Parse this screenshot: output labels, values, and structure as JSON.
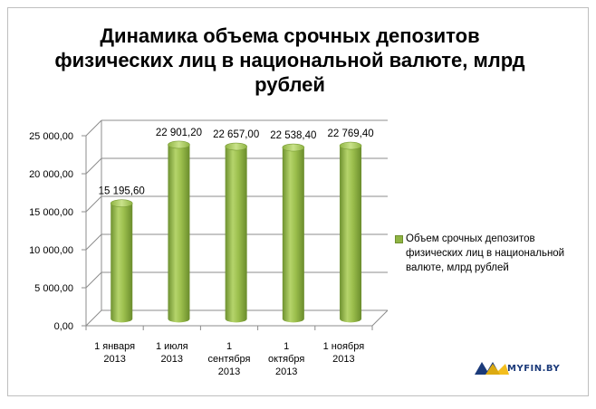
{
  "chart_data": {
    "type": "bar",
    "title_lines": [
      "Динамика объема срочных депозитов",
      "физических лиц в национальной валюте, млрд",
      "рублей"
    ],
    "categories": [
      [
        "1 января",
        "2013"
      ],
      [
        "1 июля",
        "2013"
      ],
      [
        "1",
        "сентября",
        "2013"
      ],
      [
        "1",
        "октября",
        "2013"
      ],
      [
        "1 ноября",
        "2013"
      ]
    ],
    "series": [
      {
        "name": "Объем срочных депозитов физических лиц в национальной валюте, млрд рублей",
        "legend_lines": [
          "Объем срочных депозитов",
          "физических лиц в национальной",
          "валюте, млрд рублей"
        ],
        "values": [
          15195.6,
          22901.2,
          22657.0,
          22538.4,
          22769.4
        ],
        "data_labels": [
          "15 195,60",
          "22 901,20",
          "22 657,00",
          "22 538,40",
          "22 769,40"
        ],
        "color": "#8fb443"
      }
    ],
    "ylim": [
      0,
      25000
    ],
    "yticks": [
      0,
      5000,
      10000,
      15000,
      20000,
      25000
    ],
    "ytick_labels": [
      "0,00",
      "5 000,00",
      "10 000,00",
      "15 000,00",
      "20 000,00",
      "25 000,00"
    ],
    "grid": true,
    "legend_position": "right",
    "three_d": true
  },
  "logo": {
    "text": "MYFIN.BY",
    "color": "#1b3a7a",
    "accent": "#f2b705"
  }
}
